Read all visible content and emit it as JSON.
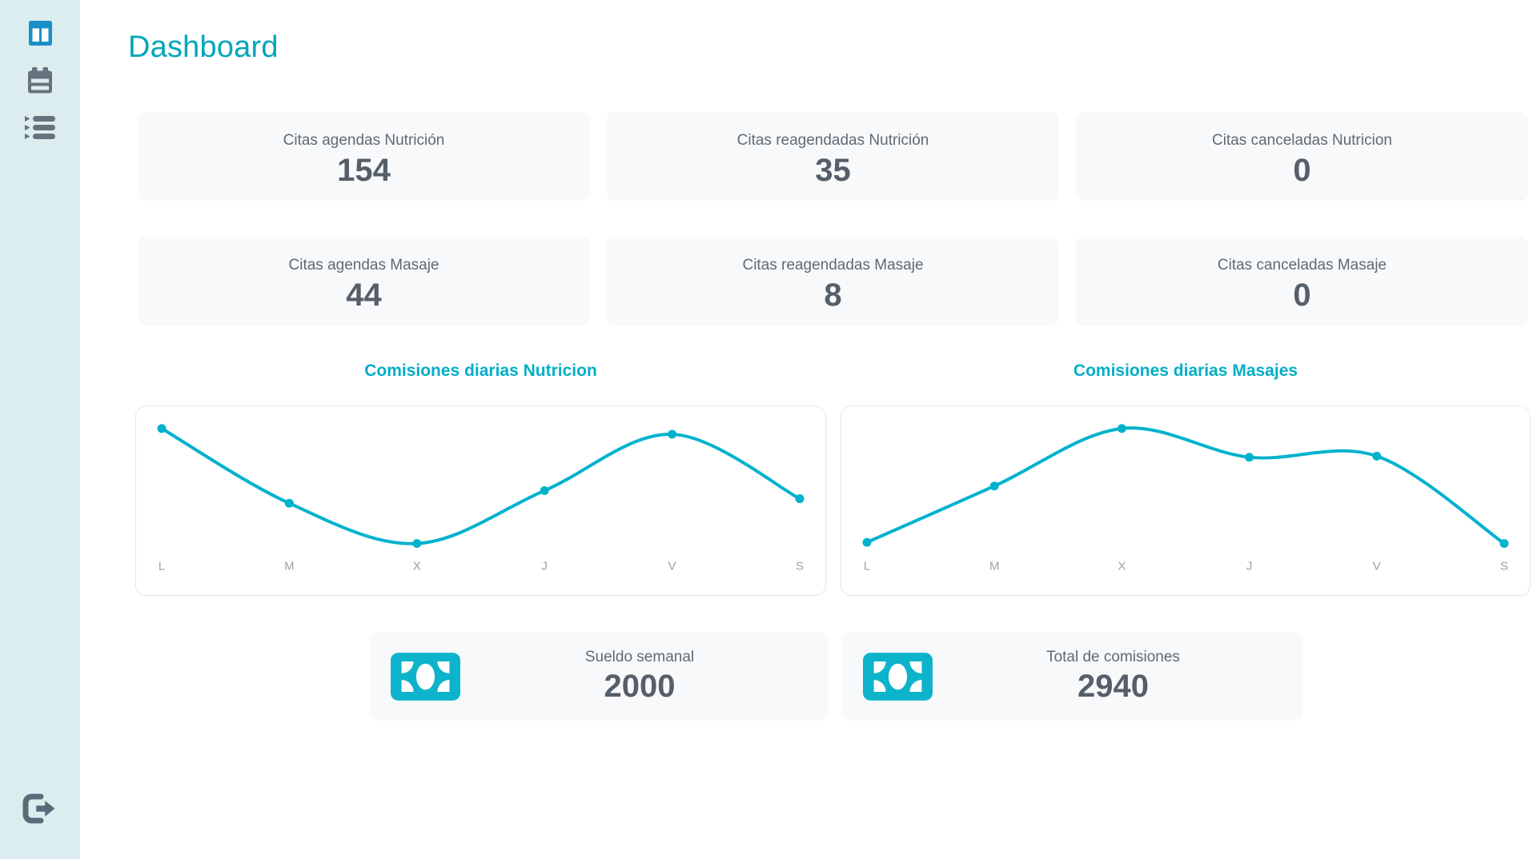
{
  "page": {
    "title": "Dashboard"
  },
  "sidebar": {
    "items": [
      {
        "name": "dashboard",
        "icon": "columns-icon"
      },
      {
        "name": "calendar",
        "icon": "calendar-icon"
      },
      {
        "name": "appointments-list",
        "icon": "list-icon"
      }
    ],
    "logout_icon": "sign-out-icon"
  },
  "stats": [
    {
      "label": "Citas agendas Nutrición",
      "value": "154"
    },
    {
      "label": "Citas reagendadas Nutrición",
      "value": "35"
    },
    {
      "label": "Citas canceladas Nutricion",
      "value": "0"
    },
    {
      "label": "Citas agendas Masaje",
      "value": "44"
    },
    {
      "label": "Citas reagendadas Masaje",
      "value": "8"
    },
    {
      "label": "Citas canceladas Masaje",
      "value": "0"
    }
  ],
  "chart_data": [
    {
      "type": "line",
      "title": "Comisiones diarias Nutricion",
      "categories": [
        "L",
        "M",
        "X",
        "J",
        "V",
        "S"
      ],
      "values": [
        100,
        35,
        0,
        46,
        95,
        39
      ],
      "ylim": [
        0,
        100
      ],
      "grid": false,
      "legend": false,
      "note": "no y-axis labels shown; values estimated relative 0-100"
    },
    {
      "type": "line",
      "title": "Comisiones diarias Masajes",
      "categories": [
        "L",
        "M",
        "X",
        "J",
        "V",
        "S"
      ],
      "values": [
        1,
        50,
        100,
        75,
        76,
        0
      ],
      "ylim": [
        0,
        100
      ],
      "grid": false,
      "legend": false,
      "note": "no y-axis labels shown; values estimated relative 0-100"
    }
  ],
  "totals": [
    {
      "label": "Sueldo semanal",
      "value": "2000",
      "icon": "money-bill-icon"
    },
    {
      "label": "Total de comisiones",
      "value": "2940",
      "icon": "money-bill-icon"
    }
  ],
  "colors": {
    "accent": "#00b2cd",
    "page_title": "#00a6b8",
    "chart_title": "#00aec6",
    "sidebar_bg": "#dcedf0",
    "active_icon_blue": "#1a90c8",
    "inactive_icon_gray": "#67727e",
    "card_bg": "#f8f9fa",
    "label_text": "#5f6a75",
    "value_text": "#555f6a",
    "axis_label": "#98a0a8"
  }
}
